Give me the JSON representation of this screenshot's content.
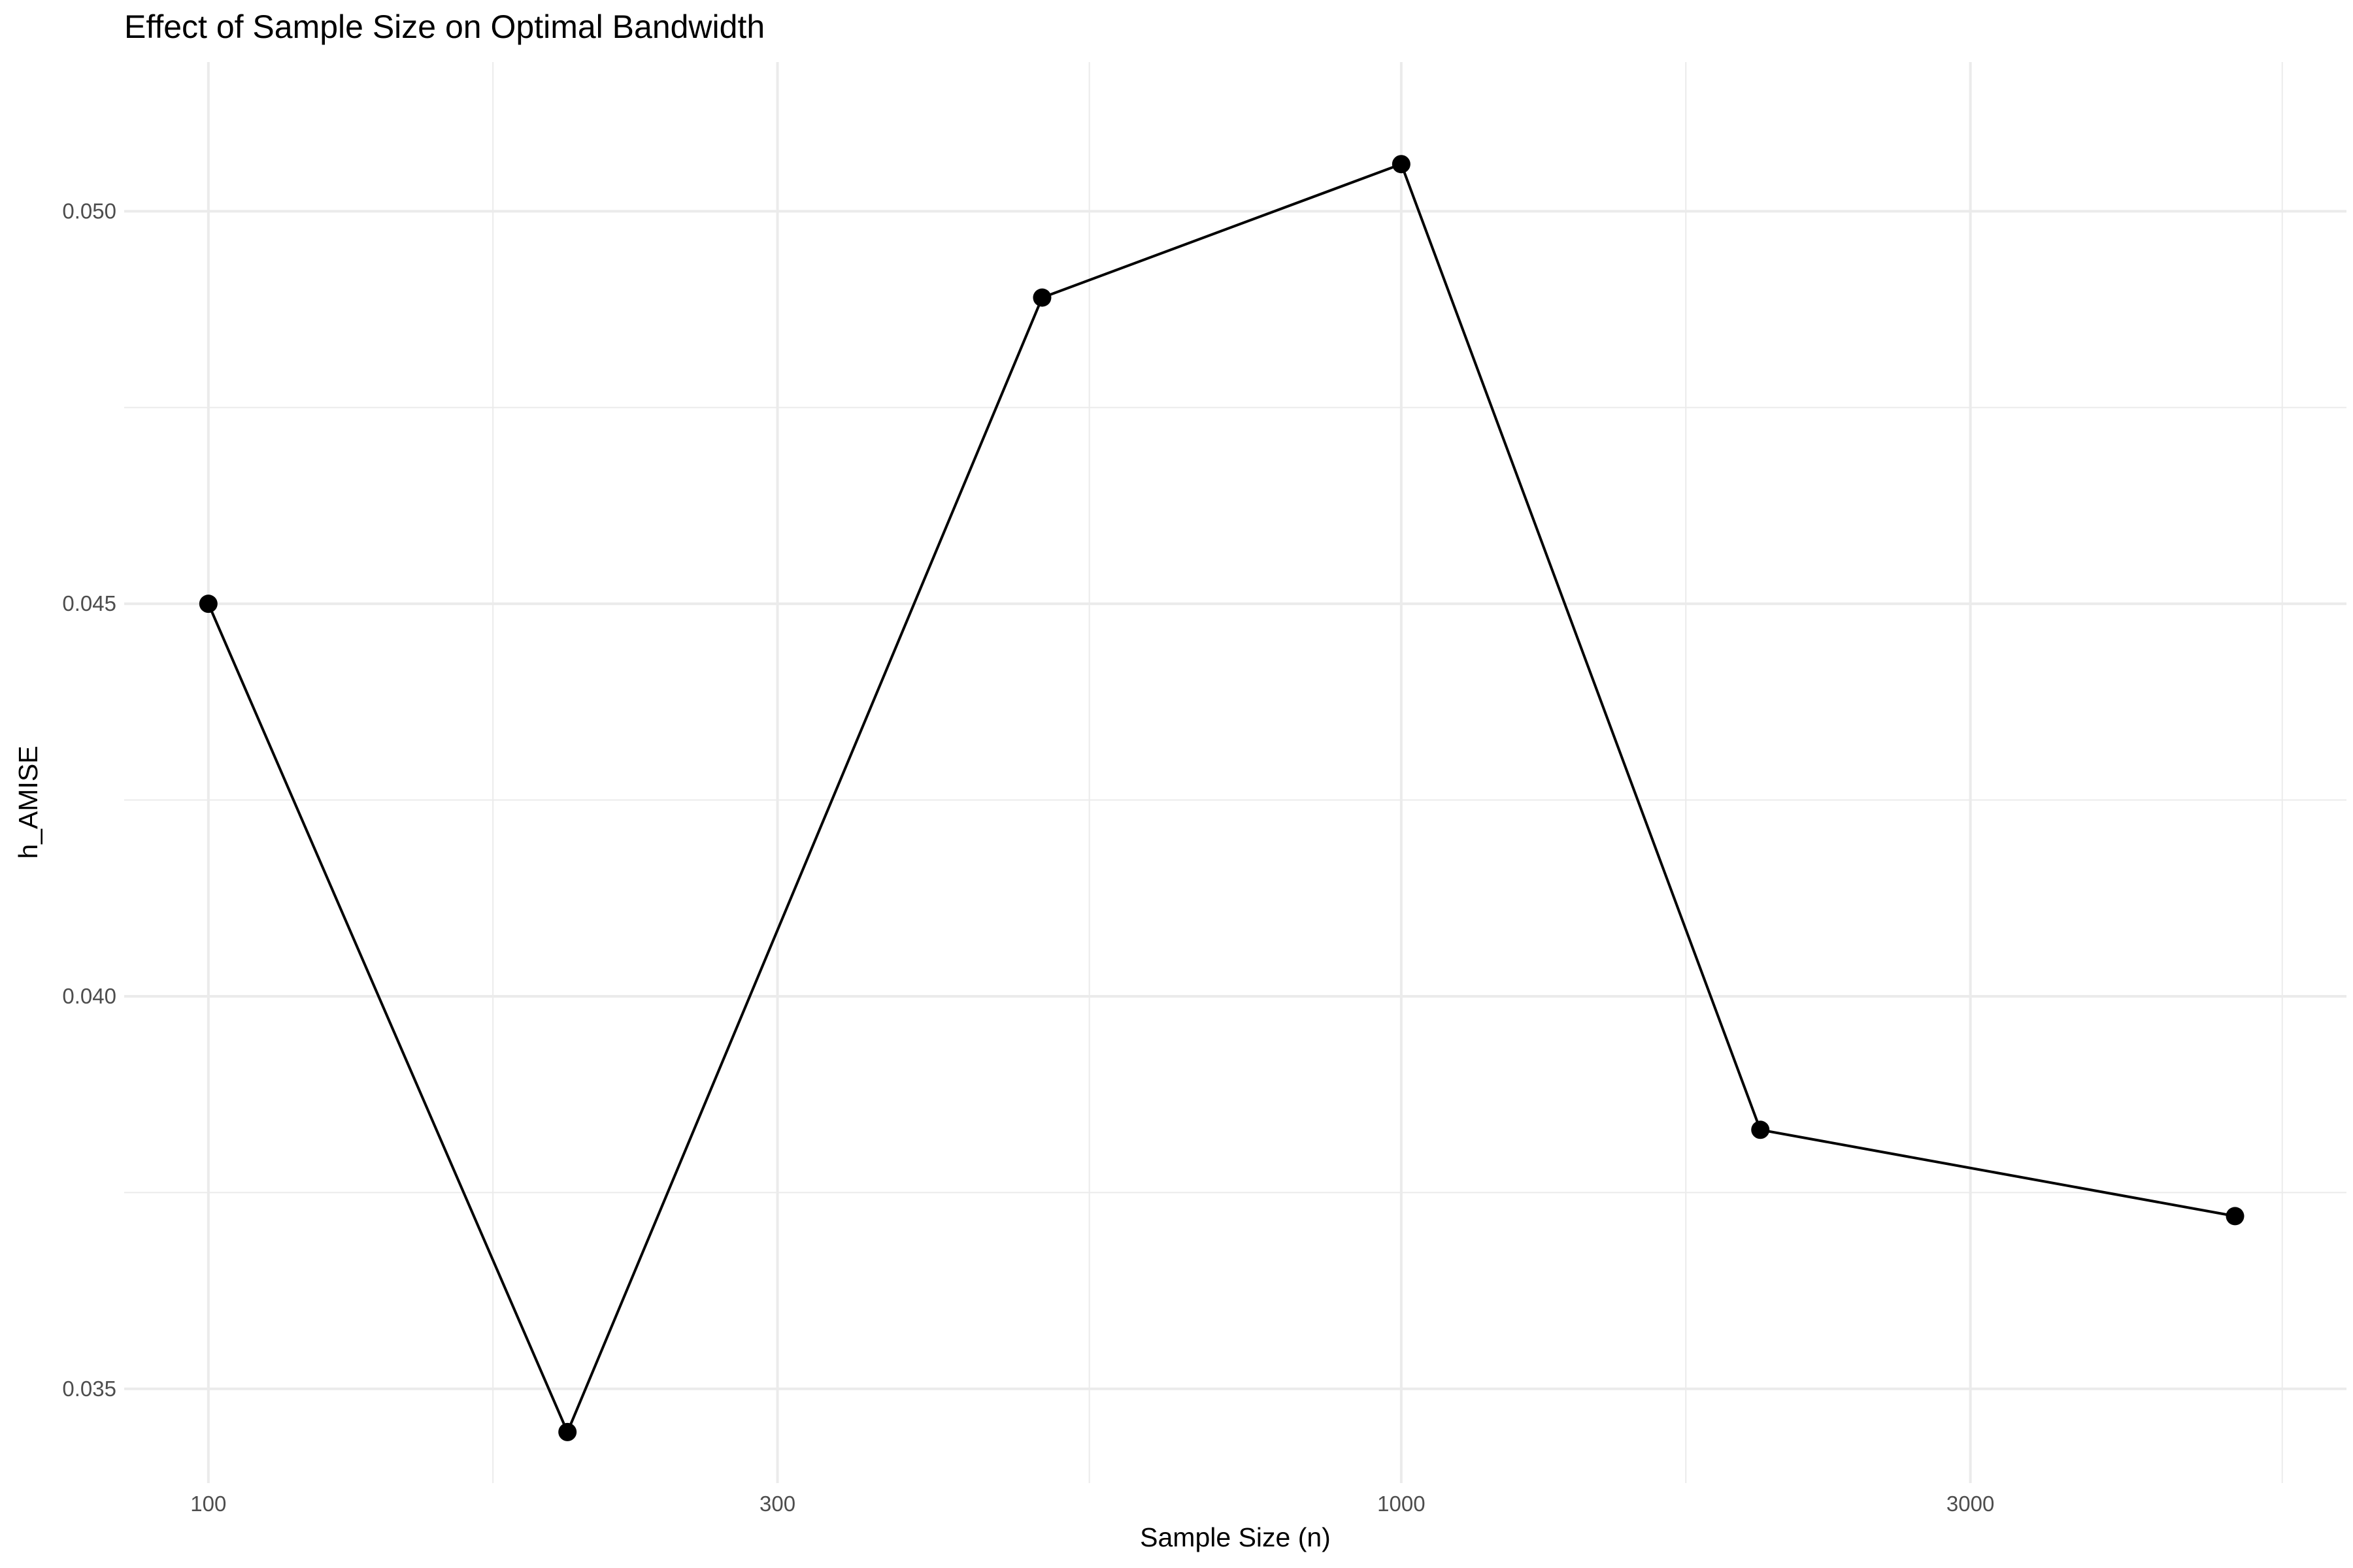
{
  "chart_data": {
    "type": "line",
    "title": "Effect of Sample Size on Optimal Bandwidth",
    "xlabel": "Sample Size (n)",
    "ylabel": "h_AMISE",
    "x_scale": "log10",
    "xlim": [
      85,
      6200
    ],
    "ylim": [
      0.0338,
      0.0519
    ],
    "x_ticks": [
      100,
      300,
      1000,
      3000
    ],
    "x_tick_labels": [
      "100",
      "300",
      "1000",
      "3000"
    ],
    "x_minor_ticks": [
      173.2,
      547.7,
      1732.1,
      5477.2
    ],
    "y_ticks": [
      0.035,
      0.04,
      0.045,
      0.05
    ],
    "y_tick_labels": [
      "0.035",
      "0.040",
      "0.045",
      "0.050"
    ],
    "y_minor_ticks": [
      0.0375,
      0.0425,
      0.0475
    ],
    "grid": true,
    "legend": "none",
    "series": [
      {
        "x": [
          100,
          200,
          500,
          1000,
          2000,
          5000
        ],
        "y": [
          0.045,
          0.03445,
          0.0489,
          0.0506,
          0.0383,
          0.0372
        ],
        "color": "#000000"
      }
    ]
  }
}
